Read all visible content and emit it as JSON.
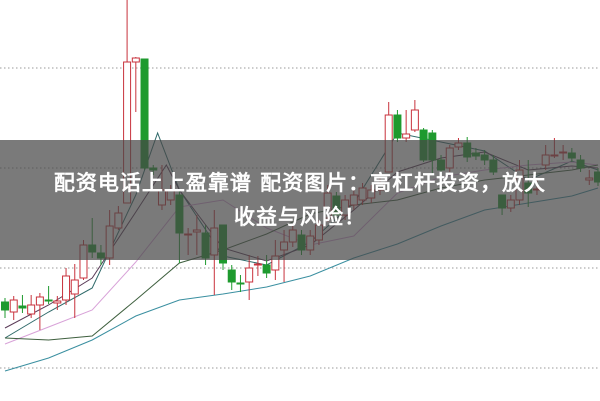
{
  "title": {
    "line1": "配资电话上上盈靠谱 配资图片：高杠杆投资，放大",
    "line2": "收益与风险！"
  },
  "chart_data": {
    "type": "candlestick",
    "title": "",
    "xlabel": "",
    "ylabel": "",
    "ylim": [
      0,
      400
    ],
    "grid": "horizontal dotted",
    "gridlines": [
      332,
      232,
      132,
      32
    ],
    "candle_fields": [
      "open",
      "close",
      "high",
      "low"
    ],
    "candles": [
      [
        98,
        90,
        102,
        82
      ],
      [
        88,
        100,
        104,
        80
      ],
      [
        94,
        92,
        105,
        87
      ],
      [
        86,
        95,
        105,
        82
      ],
      [
        95,
        103,
        107,
        70
      ],
      [
        100,
        99,
        114,
        96
      ],
      [
        97,
        99,
        104,
        90
      ],
      [
        100,
        124,
        132,
        95
      ],
      [
        106,
        120,
        136,
        82
      ],
      [
        122,
        155,
        160,
        120
      ],
      [
        155,
        148,
        182,
        142
      ],
      [
        147,
        142,
        155,
        135
      ],
      [
        142,
        174,
        190,
        135
      ],
      [
        172,
        187,
        194,
        170
      ],
      [
        197,
        338,
        400,
        197
      ],
      [
        338,
        342,
        343,
        288
      ],
      [
        341,
        232,
        341,
        230
      ],
      [
        232,
        230,
        235,
        225
      ],
      [
        195,
        210,
        235,
        190
      ],
      [
        200,
        210,
        215,
        195
      ],
      [
        205,
        167,
        210,
        137
      ],
      [
        165,
        166,
        172,
        145
      ],
      [
        168,
        170,
        185,
        145
      ],
      [
        167,
        142,
        175,
        135
      ],
      [
        145,
        172,
        190,
        105
      ],
      [
        175,
        137,
        175,
        130
      ],
      [
        130,
        118,
        135,
        110
      ],
      [
        117,
        116,
        125,
        108
      ],
      [
        118,
        132,
        145,
        100
      ],
      [
        135,
        136,
        144,
        124
      ],
      [
        135,
        127,
        145,
        122
      ],
      [
        130,
        144,
        160,
        120
      ],
      [
        150,
        158,
        170,
        118
      ],
      [
        158,
        170,
        175,
        153
      ],
      [
        165,
        150,
        170,
        145
      ],
      [
        150,
        164,
        170,
        145
      ],
      [
        160,
        175,
        180,
        155
      ],
      [
        182,
        207,
        215,
        178
      ],
      [
        204,
        185,
        208,
        180
      ],
      [
        185,
        200,
        205,
        180
      ],
      [
        195,
        205,
        210,
        190
      ],
      [
        200,
        212,
        217,
        195
      ],
      [
        202,
        210,
        215,
        197
      ],
      [
        210,
        217,
        222,
        205
      ],
      [
        228,
        285,
        298,
        228
      ],
      [
        285,
        262,
        290,
        258
      ],
      [
        262,
        266,
        290,
        258
      ],
      [
        270,
        290,
        300,
        268
      ],
      [
        270,
        240,
        272,
        238
      ],
      [
        267,
        240,
        270,
        225
      ],
      [
        240,
        230,
        245,
        222
      ],
      [
        232,
        252,
        255,
        228
      ],
      [
        253,
        257,
        262,
        250
      ],
      [
        257,
        243,
        263,
        238
      ],
      [
        247,
        244,
        252,
        240
      ],
      [
        245,
        240,
        250,
        235
      ],
      [
        240,
        228,
        245,
        225
      ],
      [
        205,
        192,
        205,
        185
      ],
      [
        192,
        200,
        205,
        188
      ],
      [
        200,
        230,
        240,
        195
      ],
      [
        217,
        207,
        240,
        193
      ],
      [
        210,
        211,
        220,
        205
      ],
      [
        235,
        245,
        255,
        230
      ],
      [
        244,
        245,
        262,
        242
      ],
      [
        247,
        248,
        255,
        240
      ],
      [
        247,
        242,
        252,
        238
      ],
      [
        240,
        232,
        245,
        228
      ],
      [
        220,
        222,
        230,
        215
      ],
      [
        228,
        218,
        232,
        214
      ]
    ],
    "moving_averages": [
      {
        "color": "#2f6a6a",
        "points": [
          [
            0,
            62
          ],
          [
            5,
            88
          ],
          [
            10,
            112
          ],
          [
            15,
            205
          ],
          [
            17.5,
            267
          ],
          [
            20,
            210
          ],
          [
            25,
            144
          ],
          [
            30,
            135
          ],
          [
            35,
            158
          ],
          [
            40,
            197
          ],
          [
            45,
            267
          ],
          [
            50,
            258
          ],
          [
            55,
            249
          ],
          [
            60,
            220
          ],
          [
            65,
            239
          ],
          [
            68,
            230
          ]
        ]
      },
      {
        "color": "#5b3b58",
        "points": [
          [
            0,
            72
          ],
          [
            5,
            95
          ],
          [
            10,
            122
          ],
          [
            15,
            188
          ],
          [
            18.5,
            235
          ],
          [
            20,
            210
          ],
          [
            25,
            152
          ],
          [
            30,
            139
          ],
          [
            35,
            155
          ],
          [
            40,
            190
          ],
          [
            45,
            228
          ],
          [
            50,
            242
          ],
          [
            55,
            248
          ],
          [
            60,
            230
          ],
          [
            65,
            234
          ],
          [
            68,
            232
          ]
        ]
      },
      {
        "color": "#d8a2d8",
        "points": [
          [
            0,
            56
          ],
          [
            5,
            73
          ],
          [
            10,
            90
          ],
          [
            15,
            138
          ],
          [
            20,
            193
          ],
          [
            25,
            200
          ],
          [
            30,
            172
          ],
          [
            35,
            155
          ],
          [
            40,
            164
          ],
          [
            45,
            207
          ],
          [
            50,
            223
          ],
          [
            55,
            230
          ],
          [
            60,
            235
          ],
          [
            65,
            238
          ],
          [
            68,
            235
          ]
        ]
      },
      {
        "color": "#3e5f3e",
        "points": [
          [
            0,
            62
          ],
          [
            5,
            60
          ],
          [
            10,
            64
          ],
          [
            15,
            100
          ],
          [
            20,
            137
          ],
          [
            25,
            150
          ],
          [
            30,
            166
          ],
          [
            35,
            186
          ],
          [
            40,
            195
          ],
          [
            45,
            200
          ],
          [
            50,
            212
          ],
          [
            55,
            220
          ],
          [
            60,
            225
          ],
          [
            65,
            230
          ],
          [
            68,
            235
          ]
        ]
      },
      {
        "color": "#3a8fa0",
        "points": [
          [
            0,
            29
          ],
          [
            5,
            42
          ],
          [
            10,
            60
          ],
          [
            15,
            84
          ],
          [
            20,
            100
          ],
          [
            25,
            106
          ],
          [
            30,
            113
          ],
          [
            35,
            124
          ],
          [
            40,
            142
          ],
          [
            45,
            156
          ],
          [
            50,
            174
          ],
          [
            55,
            190
          ],
          [
            60,
            197
          ],
          [
            65,
            204
          ],
          [
            68,
            212
          ]
        ]
      }
    ],
    "colors": {
      "up": "#c8323c",
      "down": "#1e9a2e",
      "grid": "#999999",
      "banner": "#464646"
    }
  }
}
